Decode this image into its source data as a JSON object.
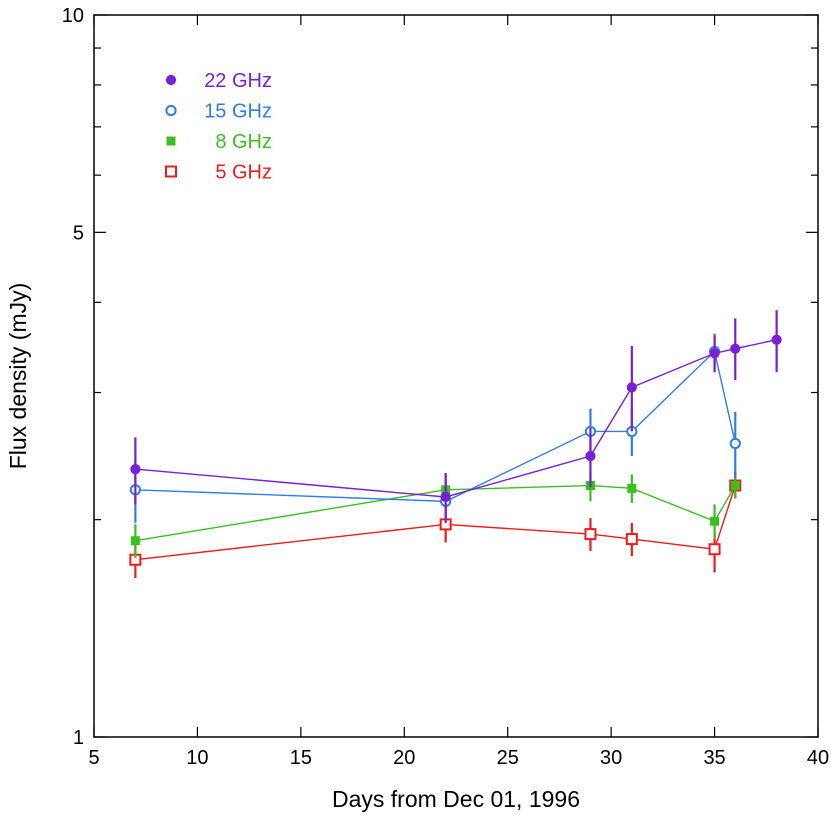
{
  "chart_data": {
    "type": "scatter",
    "xlabel": "Days from Dec 01, 1996",
    "ylabel": "Flux density (mJy)",
    "xlim": [
      5,
      40
    ],
    "ylim": [
      1,
      10
    ],
    "yscale": "log",
    "xticks": [
      5,
      10,
      15,
      20,
      25,
      30,
      35,
      40
    ],
    "xtick_labels": [
      "5",
      "10",
      "15",
      "20",
      "25",
      "30",
      "35",
      "40"
    ],
    "yticks_major": [
      1,
      5,
      10
    ],
    "ytick_labels": [
      "1",
      "5",
      "10"
    ],
    "yticks_minor": [
      2,
      3,
      4,
      6,
      7,
      8,
      9
    ],
    "legend_position": "top-left",
    "series": [
      {
        "name": "22 GHz",
        "color": "#7a1fd6",
        "marker": "filled-circle",
        "x": [
          7,
          22,
          29,
          31,
          35,
          36,
          38
        ],
        "y": [
          2.35,
          2.15,
          2.45,
          3.05,
          3.4,
          3.45,
          3.55
        ],
        "err_low": [
          2.1,
          1.98,
          2.22,
          2.65,
          3.2,
          3.12,
          3.2
        ],
        "err_high": [
          2.6,
          2.32,
          2.68,
          3.48,
          3.6,
          3.8,
          3.9
        ]
      },
      {
        "name": "15 GHz",
        "color": "#2f7fe0",
        "marker": "open-circle",
        "x": [
          7,
          22,
          29,
          31,
          35,
          36
        ],
        "y": [
          2.2,
          2.12,
          2.65,
          2.65,
          3.42,
          2.55
        ],
        "err_low": [
          1.98,
          1.98,
          2.45,
          2.45,
          3.22,
          2.28
        ],
        "err_high": [
          2.42,
          2.27,
          2.85,
          2.85,
          3.62,
          2.82
        ]
      },
      {
        "name": "8 GHz",
        "color": "#3bbf1f",
        "marker": "filled-square",
        "x": [
          7,
          22,
          29,
          31,
          35,
          36
        ],
        "y": [
          1.87,
          2.2,
          2.23,
          2.21,
          1.99,
          2.23
        ],
        "err_low": [
          1.77,
          2.08,
          2.12,
          2.11,
          1.88,
          2.14
        ],
        "err_high": [
          1.97,
          2.32,
          2.33,
          2.31,
          2.1,
          2.33
        ]
      },
      {
        "name": "5 GHz",
        "color": "#ee1c1c",
        "marker": "open-square",
        "x": [
          7,
          22,
          29,
          31,
          35,
          36
        ],
        "y": [
          1.76,
          1.97,
          1.91,
          1.88,
          1.82,
          2.23
        ],
        "err_low": [
          1.66,
          1.86,
          1.81,
          1.78,
          1.69,
          2.14
        ],
        "err_high": [
          1.86,
          2.08,
          2.01,
          1.98,
          1.95,
          2.33
        ]
      }
    ]
  }
}
